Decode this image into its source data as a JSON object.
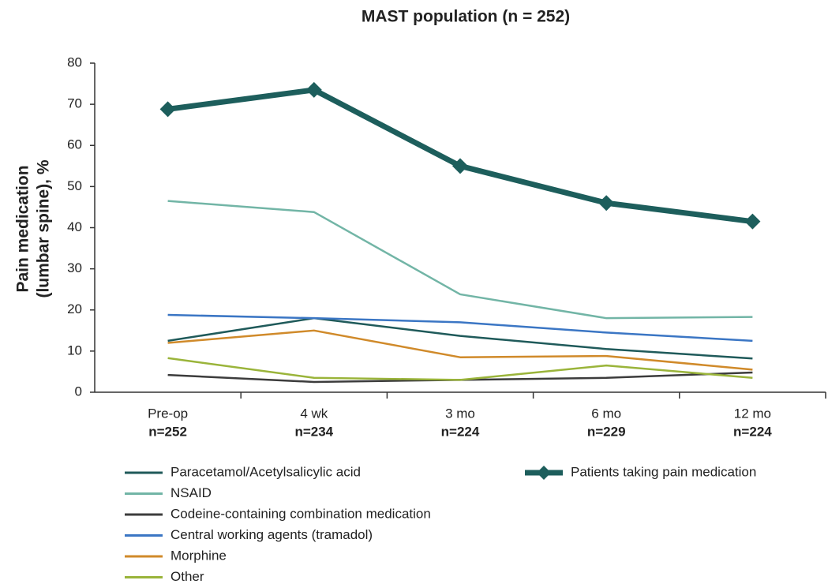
{
  "chart_data": {
    "type": "line",
    "title": "MAST population (n = 252)",
    "y_label": [
      "Pain medication",
      "(lumbar spine), %"
    ],
    "categories": [
      [
        "Pre-op",
        "n=252"
      ],
      [
        "4 wk",
        "n=234"
      ],
      [
        "3 mo",
        "n=224"
      ],
      [
        "6 mo",
        "n=229"
      ],
      [
        "12 mo",
        "n=224"
      ]
    ],
    "ylim": [
      0,
      80
    ],
    "yticks": [
      0,
      10,
      20,
      30,
      40,
      50,
      60,
      70,
      80
    ],
    "grid": false,
    "series": [
      {
        "name": "Paracetamol/Acetylsalicylic acid",
        "color": "#1f5a5a",
        "values": [
          12.5,
          18,
          13.7,
          10.5,
          8.2
        ]
      },
      {
        "name": "NSAID",
        "color": "#72b5a6",
        "values": [
          46.5,
          43.8,
          23.8,
          18,
          18.3
        ]
      },
      {
        "name": "Codeine-containing combination medication",
        "color": "#3c3c3c",
        "values": [
          4.2,
          2.5,
          3,
          3.5,
          4.8
        ]
      },
      {
        "name": "Central working agents (tramadol)",
        "color": "#3b76c4",
        "values": [
          18.8,
          18,
          17,
          14.5,
          12.5
        ]
      },
      {
        "name": "Morphine",
        "color": "#d08a2a",
        "values": [
          12,
          15,
          8.5,
          8.8,
          5.5
        ]
      },
      {
        "name": "Other",
        "color": "#9ab43a",
        "values": [
          8.3,
          3.5,
          3,
          6.5,
          3.5
        ]
      },
      {
        "name": "Patients taking pain medication",
        "color": "#1d5e5c",
        "marker": "diamond",
        "width": 7,
        "values": [
          68.8,
          73.5,
          55,
          46,
          41.5
        ]
      }
    ]
  }
}
